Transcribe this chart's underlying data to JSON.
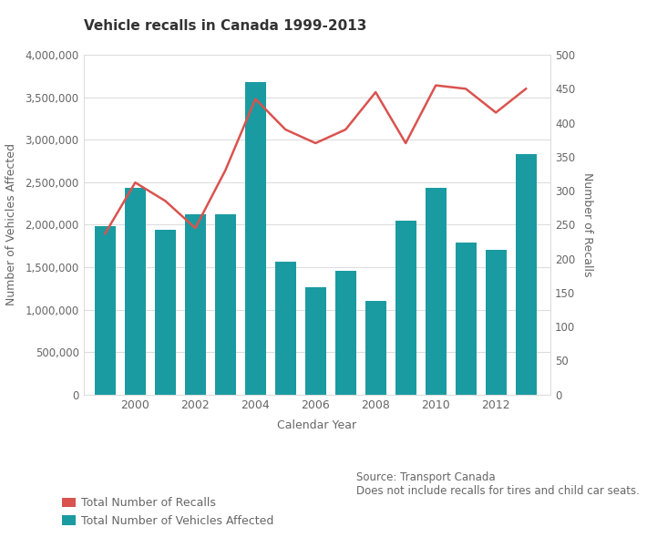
{
  "title": "Vehicle recalls in Canada 1999-2013",
  "years": [
    1999,
    2000,
    2001,
    2002,
    2003,
    2004,
    2005,
    2006,
    2007,
    2008,
    2009,
    2010,
    2011,
    2012,
    2013
  ],
  "vehicles_affected": [
    1980000,
    2430000,
    1940000,
    2120000,
    2120000,
    3680000,
    1560000,
    1260000,
    1460000,
    1100000,
    2050000,
    2430000,
    1790000,
    1700000,
    2830000
  ],
  "num_recalls": [
    237,
    312,
    285,
    245,
    330,
    435,
    390,
    370,
    390,
    445,
    370,
    455,
    450,
    415,
    450
  ],
  "bar_color": "#1a9ba1",
  "line_color": "#d9534f",
  "xlabel": "Calendar Year",
  "ylabel_left": "Number of Vehicles Affected",
  "ylabel_right": "Number of Recalls",
  "ylim_left": [
    0,
    4000000
  ],
  "ylim_right": [
    0,
    500
  ],
  "source_text": "Source: Transport Canada\nDoes not include recalls for tires and child car seats.",
  "legend_recalls": "Total Number of Recalls",
  "legend_vehicles": "Total Number of Vehicles Affected",
  "background_color": "#ffffff",
  "grid_color": "#dddddd",
  "title_color": "#333333",
  "label_color": "#666666"
}
